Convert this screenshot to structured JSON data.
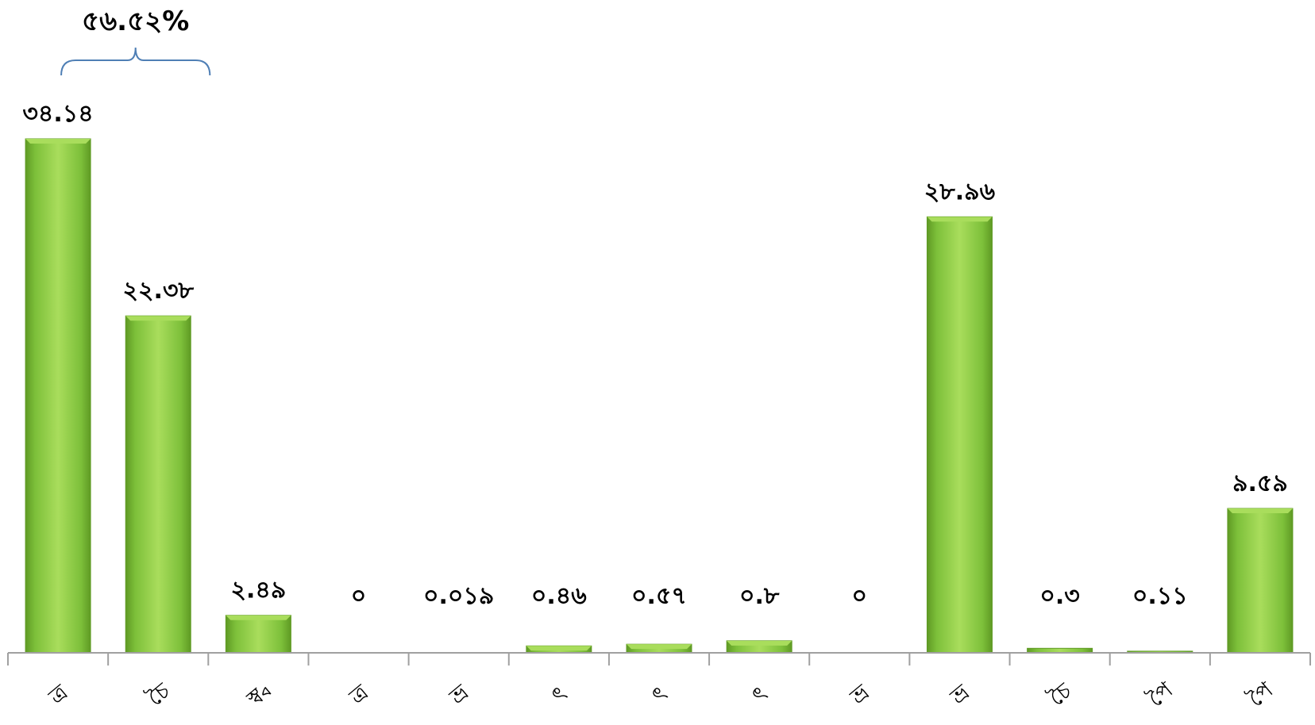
{
  "chart_data": {
    "type": "bar",
    "title": "",
    "xlabel": "",
    "ylabel": "",
    "categories": [
      "ত্ৰ",
      "চৈ",
      "স্ব্ব",
      "ত্ৰ",
      "ভ্ৰ",
      "ৎ",
      "ৎ",
      "ৎ",
      "ভ্ৰ",
      "ভ্ৰ",
      "চৈ",
      "পৈ",
      "পৈ"
    ],
    "values": [
      34.14,
      22.38,
      2.49,
      0,
      0.019,
      0.46,
      0.57,
      0.8,
      0,
      28.96,
      0.3,
      0.11,
      9.59
    ],
    "value_labels": [
      "৩৪.১৪",
      "২২.৩৮",
      "২.৪৯",
      "০",
      "০.০১৯",
      "০.৪৬",
      "০.৫৭",
      "০.৮",
      "০",
      "২৮.৯৬",
      "০.৩",
      "০.১১",
      "৯.৫৯"
    ],
    "ylim": [
      0,
      34.14
    ],
    "grid": false,
    "legend": "none",
    "bar_color": "#7dc03a",
    "bar_color_light": "#a9dd5c",
    "bar_color_dark": "#5f9a24",
    "axis_color": "#a0a0a0",
    "group_brace": {
      "label": "৫৬.৫২%",
      "from_index": 0,
      "to_index": 1,
      "color": "#4f7fb5"
    }
  }
}
